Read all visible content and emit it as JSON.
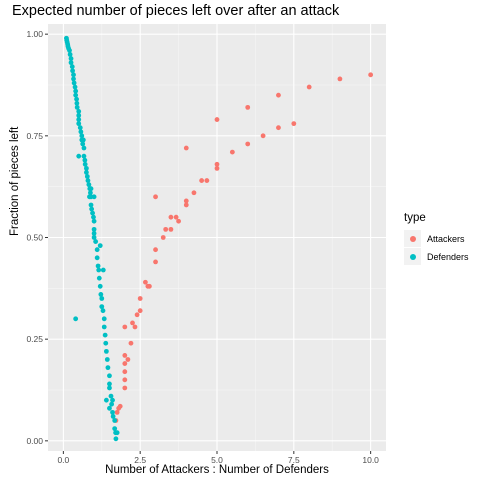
{
  "chart_data": {
    "type": "scatter",
    "title": "Expected number of pieces left over after an attack",
    "xlabel": "Number of Attackers : Number of Defenders",
    "ylabel": "Fraction of pieces left",
    "xlim": [
      -0.5,
      10.5
    ],
    "ylim": [
      -0.025,
      1.025
    ],
    "x_ticks": [
      0.0,
      2.5,
      5.0,
      7.5,
      10.0
    ],
    "x_tick_labels": [
      "0.0",
      "2.5",
      "5.0",
      "7.5",
      "10.0"
    ],
    "y_ticks": [
      0.0,
      0.25,
      0.5,
      0.75,
      1.0
    ],
    "y_tick_labels": [
      "0.00",
      "0.25",
      "0.50",
      "0.75",
      "1.00"
    ],
    "grid": true,
    "legend": {
      "title": "type",
      "position": "right"
    },
    "series": [
      {
        "name": "Attackers",
        "color": "#F8766D",
        "points": [
          [
            1.71,
            0.05
          ],
          [
            1.75,
            0.07
          ],
          [
            1.8,
            0.08
          ],
          [
            1.85,
            0.085
          ],
          [
            2.0,
            0.13
          ],
          [
            2.0,
            0.15
          ],
          [
            2.0,
            0.17
          ],
          [
            2.0,
            0.19
          ],
          [
            2.0,
            0.21
          ],
          [
            2.0,
            0.28
          ],
          [
            2.1,
            0.2
          ],
          [
            2.2,
            0.24
          ],
          [
            2.25,
            0.29
          ],
          [
            2.33,
            0.28
          ],
          [
            2.4,
            0.31
          ],
          [
            2.5,
            0.32
          ],
          [
            2.5,
            0.35
          ],
          [
            2.67,
            0.39
          ],
          [
            2.75,
            0.38
          ],
          [
            2.8,
            0.38
          ],
          [
            3.0,
            0.44
          ],
          [
            3.0,
            0.47
          ],
          [
            3.0,
            0.6
          ],
          [
            3.25,
            0.5
          ],
          [
            3.33,
            0.52
          ],
          [
            3.5,
            0.52
          ],
          [
            3.5,
            0.55
          ],
          [
            3.67,
            0.55
          ],
          [
            3.75,
            0.54
          ],
          [
            4.0,
            0.58
          ],
          [
            4.0,
            0.59
          ],
          [
            4.0,
            0.72
          ],
          [
            4.25,
            0.61
          ],
          [
            4.5,
            0.64
          ],
          [
            4.67,
            0.64
          ],
          [
            5.0,
            0.67
          ],
          [
            5.0,
            0.68
          ],
          [
            5.0,
            0.79
          ],
          [
            5.5,
            0.71
          ],
          [
            6.0,
            0.73
          ],
          [
            6.0,
            0.82
          ],
          [
            6.5,
            0.75
          ],
          [
            7.0,
            0.77
          ],
          [
            7.0,
            0.85
          ],
          [
            7.5,
            0.78
          ],
          [
            8.0,
            0.87
          ],
          [
            9.0,
            0.89
          ],
          [
            10.0,
            0.9
          ]
        ]
      },
      {
        "name": "Defenders",
        "color": "#00BFC4",
        "points": [
          [
            0.1,
            0.99
          ],
          [
            0.11,
            0.985
          ],
          [
            0.125,
            0.98
          ],
          [
            0.14,
            0.975
          ],
          [
            0.15,
            0.97
          ],
          [
            0.17,
            0.965
          ],
          [
            0.2,
            0.96
          ],
          [
            0.22,
            0.95
          ],
          [
            0.25,
            0.94
          ],
          [
            0.25,
            0.93
          ],
          [
            0.29,
            0.92
          ],
          [
            0.3,
            0.91
          ],
          [
            0.33,
            0.9
          ],
          [
            0.33,
            0.89
          ],
          [
            0.35,
            0.88
          ],
          [
            0.38,
            0.87
          ],
          [
            0.4,
            0.86
          ],
          [
            0.4,
            0.85
          ],
          [
            0.43,
            0.84
          ],
          [
            0.44,
            0.83
          ],
          [
            0.45,
            0.82
          ],
          [
            0.5,
            0.81
          ],
          [
            0.5,
            0.8
          ],
          [
            0.5,
            0.78
          ],
          [
            0.55,
            0.77
          ],
          [
            0.57,
            0.76
          ],
          [
            0.6,
            0.75
          ],
          [
            0.6,
            0.74
          ],
          [
            0.63,
            0.73
          ],
          [
            0.67,
            0.72
          ],
          [
            0.67,
            0.7
          ],
          [
            0.7,
            0.69
          ],
          [
            0.71,
            0.68
          ],
          [
            0.75,
            0.67
          ],
          [
            0.75,
            0.66
          ],
          [
            0.78,
            0.65
          ],
          [
            0.8,
            0.64
          ],
          [
            0.83,
            0.63
          ],
          [
            0.86,
            0.62
          ],
          [
            0.88,
            0.61
          ],
          [
            0.9,
            0.6
          ],
          [
            0.9,
            0.58
          ],
          [
            0.92,
            0.57
          ],
          [
            0.95,
            0.56
          ],
          [
            0.98,
            0.55
          ],
          [
            1.0,
            0.54
          ],
          [
            1.0,
            0.52
          ],
          [
            1.0,
            0.51
          ],
          [
            1.0,
            0.5
          ],
          [
            1.05,
            0.49
          ],
          [
            1.1,
            0.47
          ],
          [
            1.1,
            0.45
          ],
          [
            1.13,
            0.43
          ],
          [
            1.15,
            0.42
          ],
          [
            1.17,
            0.4
          ],
          [
            1.2,
            0.38
          ],
          [
            1.22,
            0.36
          ],
          [
            1.25,
            0.35
          ],
          [
            1.25,
            0.33
          ],
          [
            1.29,
            0.32
          ],
          [
            1.33,
            0.3
          ],
          [
            1.33,
            0.28
          ],
          [
            1.36,
            0.26
          ],
          [
            1.38,
            0.24
          ],
          [
            1.4,
            0.22
          ],
          [
            1.43,
            0.2
          ],
          [
            1.45,
            0.18
          ],
          [
            1.5,
            0.16
          ],
          [
            1.5,
            0.14
          ],
          [
            1.5,
            0.13
          ],
          [
            1.55,
            0.11
          ],
          [
            1.57,
            0.09
          ],
          [
            1.6,
            0.07
          ],
          [
            1.62,
            0.06
          ],
          [
            1.67,
            0.05
          ],
          [
            1.67,
            0.03
          ],
          [
            1.7,
            0.02
          ],
          [
            1.71,
            0.005
          ],
          [
            0.4,
            0.3
          ],
          [
            0.5,
            0.7
          ],
          [
            0.5,
            0.79
          ],
          [
            0.65,
            0.74
          ],
          [
            0.85,
            0.6
          ],
          [
            0.9,
            0.62
          ],
          [
            1.0,
            0.6
          ],
          [
            1.2,
            0.48
          ],
          [
            1.3,
            0.42
          ],
          [
            1.4,
            0.1
          ],
          [
            1.5,
            0.08
          ],
          [
            1.6,
            0.1
          ],
          [
            1.75,
            0.02
          ]
        ]
      }
    ]
  }
}
